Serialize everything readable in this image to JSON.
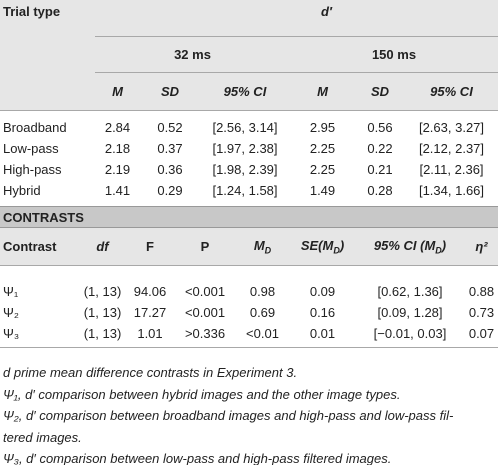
{
  "trials": {
    "header": {
      "trial_type": "Trial type",
      "measure": "d′",
      "groups": [
        "32 ms",
        "150 ms"
      ],
      "columns": [
        "M",
        "SD",
        "95% CI",
        "M",
        "SD",
        "95% CI"
      ]
    },
    "rows": [
      [
        "Broadband",
        "2.84",
        "0.52",
        "[2.56, 3.14]",
        "2.95",
        "0.56",
        "[2.63, 3.27]"
      ],
      [
        "Low-pass",
        "2.18",
        "0.37",
        "[1.97, 2.38]",
        "2.25",
        "0.22",
        "[2.12, 2.37]"
      ],
      [
        "High-pass",
        "2.19",
        "0.36",
        "[1.98, 2.39]",
        "2.25",
        "0.21",
        "[2.11, 2.36]"
      ],
      [
        "Hybrid",
        "1.41",
        "0.29",
        "[1.24, 1.58]",
        "1.49",
        "0.28",
        "[1.34, 1.66]"
      ]
    ]
  },
  "contrasts": {
    "title": "CONTRASTS",
    "header": [
      "Contrast",
      "df",
      "F",
      "P",
      [
        "M",
        "D"
      ],
      [
        "SE(M",
        "D",
        ")"
      ],
      [
        "95% CI (M",
        "D",
        ")"
      ],
      "η²"
    ],
    "rows": [
      [
        "Ψ₁",
        "(1, 13)",
        "94.06",
        "<0.001",
        "0.98",
        "0.09",
        "[0.62, 1.36]",
        "0.88"
      ],
      [
        "Ψ₂",
        "(1, 13)",
        "17.27",
        "<0.001",
        "0.69",
        "0.16",
        "[0.09, 1.28]",
        "0.73"
      ],
      [
        "Ψ₃",
        "(1, 13)",
        "1.01",
        ">0.336",
        "<0.01",
        "0.01",
        "[−0.01, 0.03]",
        "0.07"
      ]
    ]
  },
  "footnotes": [
    "d prime mean difference contrasts in Experiment 3.",
    "Ψ₁, d′ comparison between hybrid images and the other image types.",
    "Ψ₂, d′ comparison between broadband images and high-pass and low-pass fil-",
    "tered images.",
    "Ψ₃, d′ comparison between low-pass and high-pass filtered images."
  ]
}
